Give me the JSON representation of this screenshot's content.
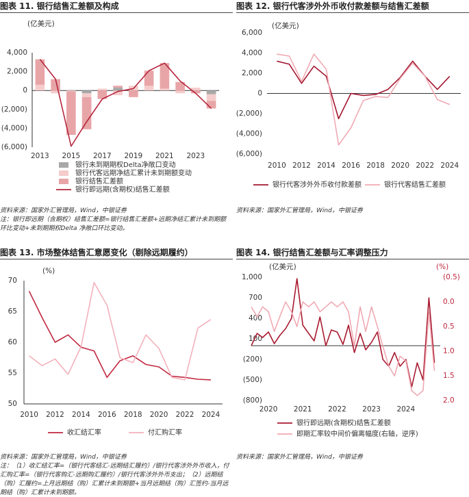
{
  "chart_data": [
    {
      "type": "bar",
      "title": "图表 11.  银行结售汇差额及构成",
      "y_unit": "(亿美元)",
      "categories": [
        2013,
        null,
        2015,
        null,
        2017,
        null,
        2019,
        null,
        2021,
        null,
        2023,
        null
      ],
      "series": [
        {
          "name": "银行未到期期权Delta净敞口变动",
          "color": "#a8a8a8",
          "values": [
            0,
            0,
            0,
            -300,
            0,
            300,
            0,
            0,
            0,
            0,
            0,
            -400
          ]
        },
        {
          "name": "银行代客远期净结汇累计未到期额变动",
          "color": "#f5cccc",
          "values": [
            600,
            -300,
            -100,
            -400,
            200,
            -500,
            500,
            500,
            200,
            -300,
            300,
            -700
          ]
        },
        {
          "name": "银行结售汇差额",
          "color": "#e8a5a8",
          "values": [
            2700,
            1200,
            -4600,
            -3400,
            -900,
            200,
            -700,
            1600,
            2700,
            900,
            -300,
            -800
          ]
        },
        {
          "name": "银行即远期(含期权)结售汇差额",
          "color": "#b5253c",
          "type": "line",
          "values": [
            3300,
            1200,
            -5900,
            -3300,
            -900,
            -100,
            200,
            2100,
            2900,
            1000,
            -300,
            -1900
          ]
        }
      ],
      "ylim": [
        -6000,
        4000
      ],
      "yticks": [
        {
          "value": -6000,
          "label": "(6,000)"
        },
        {
          "value": -4000,
          "label": "(4,000)"
        },
        {
          "value": -2000,
          "label": "(2,000)"
        },
        0,
        {
          "value": 2000,
          "label": "2,000"
        },
        {
          "value": 4000,
          "label": "4,000"
        }
      ],
      "grid": false,
      "source": "资料来源：国家外汇管理局，Wind，中银证券",
      "note": "注：银行即远期（含期权）结售汇差额=银行结售汇差额+远期净结汇累计未到期额环比变动+未到期期权Delta 净敞口环比变动。"
    },
    {
      "type": "line",
      "title": "图表 12.  银行代客涉外外币收付款差额与结售汇差额",
      "y_unit": "(亿美元)",
      "x": [
        2010,
        2011,
        2012,
        2013,
        2014,
        2015,
        2016,
        2017,
        2018,
        2019,
        2020,
        2021,
        2022,
        2023,
        2024
      ],
      "series": [
        {
          "name": "银行代客涉外外币收付款差额",
          "color": "#a3162f",
          "values": [
            3200,
            2900,
            1000,
            2700,
            1700,
            -2500,
            0,
            -200,
            -100,
            400,
            1600,
            3200,
            1700,
            400,
            1700
          ]
        },
        {
          "name": "银行代客结售汇差额",
          "color": "#f0a9b3",
          "values": [
            3900,
            3700,
            1200,
            3900,
            2400,
            -5100,
            -3400,
            -700,
            -300,
            -400,
            1500,
            3000,
            1700,
            -600,
            -1100
          ]
        }
      ],
      "xlim": [
        2009.2,
        2024.9
      ],
      "xticks": [
        2010,
        2012,
        2014,
        2016,
        2018,
        2020,
        2022,
        2024
      ],
      "ylim": [
        -6000,
        6000
      ],
      "yticks": [
        {
          "value": -6000,
          "label": "(6,000)"
        },
        {
          "value": -4000,
          "label": "(4,000)"
        },
        {
          "value": -2000,
          "label": "(2,000)"
        },
        0,
        {
          "value": 2000,
          "label": "2,000"
        },
        {
          "value": 4000,
          "label": "4,000"
        },
        {
          "value": 6000,
          "label": "6,000"
        }
      ],
      "grid": false,
      "source": "资料来源：国家外汇管理局，Wind，中银证券"
    },
    {
      "type": "line",
      "title": "图表 13.  市场整体结售汇意愿变化（剔除远期履约）",
      "y_unit": "(%)",
      "x": [
        2010,
        2011,
        2012,
        2013,
        2014,
        2015,
        2016,
        2017,
        2018,
        2019,
        2020,
        2021,
        2022,
        2023,
        2024
      ],
      "series": [
        {
          "name": "收汇结汇率",
          "color": "#c0273f",
          "values": [
            68.3,
            64,
            60,
            61.2,
            59.2,
            58.6,
            54.3,
            57,
            57.8,
            56.4,
            56,
            54.5,
            54.3,
            54,
            53.9
          ]
        },
        {
          "name": "付汇购汇率",
          "color": "#f3b1bb",
          "values": [
            57.8,
            56.2,
            57.3,
            54.8,
            59.3,
            69.7,
            66,
            57.5,
            56.7,
            61.2,
            59,
            54.3,
            53.9,
            62.3,
            63.7
          ]
        }
      ],
      "xlim": [
        2009.6,
        2024.9
      ],
      "xticks": [
        2010,
        2012,
        2014,
        2016,
        2018,
        2020,
        2022,
        2024
      ],
      "ylim": [
        50,
        70
      ],
      "yticks": [
        50,
        55,
        60,
        65,
        70
      ],
      "grid": false,
      "source": "资料来源：国家外汇管理局，Wind，中银证券",
      "note": "注：（1）收汇结汇率=（银行代客结汇-远期结汇履约）/银行代客涉外外币收入，付汇购汇率=（银行代客购汇-远期购汇履约）/银行代客涉外外币支出；（2）远期结（购）汇履约=上月远期结（购）汇累计未到期额+当月远期结（购）汇签约-当月远期结（购）汇累计未到期额。"
    },
    {
      "type": "line",
      "title": "图表 14.  银行结售汇差额与汇率调整压力",
      "y_unit": "(亿美元)",
      "y2_unit": "(%)",
      "x": [
        2019.5,
        2019.67,
        2019.83,
        2020,
        2020.17,
        2020.33,
        2020.5,
        2020.67,
        2020.83,
        2021,
        2021.17,
        2021.33,
        2021.5,
        2021.67,
        2021.83,
        2022,
        2022.17,
        2022.33,
        2022.5,
        2022.67,
        2022.83,
        2023,
        2023.17,
        2023.33,
        2023.5,
        2023.67,
        2023.83,
        2024,
        2024.17,
        2024.33,
        2024.5,
        2024.67,
        2024.83
      ],
      "series": [
        {
          "name": "银行即远期(含期权)结售汇差额",
          "color": "#a8192f",
          "values": [
            0,
            180,
            120,
            200,
            30,
            150,
            250,
            400,
            980,
            300,
            180,
            70,
            420,
            0,
            230,
            200,
            20,
            300,
            -100,
            180,
            -60,
            50,
            200,
            -200,
            -300,
            -100,
            -300,
            -200,
            -600,
            -250,
            -500,
            700,
            -250
          ]
        },
        {
          "name": "即期汇率较中间价偏离幅度(右轴，逆序)",
          "color": "#f0a9b3",
          "axis": "y2",
          "values": [
            0.1,
            0.3,
            0.1,
            0.2,
            0.6,
            0.3,
            0,
            0.2,
            0.5,
            0,
            0.1,
            0,
            0.2,
            0.1,
            0,
            0.1,
            0,
            0.2,
            0.9,
            0.1,
            0.6,
            0.1,
            0.5,
            0.9,
            1.3,
            1.5,
            1.1,
            1.2,
            1.8,
            1.9,
            1.8,
            0.2,
            1.4
          ]
        }
      ],
      "xlim": [
        2019.5,
        2025
      ],
      "xticks": [
        2020,
        2021,
        2022,
        2023,
        2024
      ],
      "ylim": [
        -800,
        1000
      ],
      "yticks": [
        {
          "value": -800,
          "label": "(800)"
        },
        {
          "value": -500,
          "label": "(500)"
        },
        {
          "value": -200,
          "label": "(200)"
        },
        100,
        400,
        700,
        {
          "value": 1000,
          "label": "1,000"
        }
      ],
      "y2lim": [
        2.0,
        -0.5
      ],
      "y2ticks": [
        {
          "value": -0.5,
          "label": "(0.5)"
        },
        {
          "value": 0,
          "label": "0.0"
        },
        {
          "value": 0.5,
          "label": "0.5"
        },
        {
          "value": 1,
          "label": "1.0"
        },
        {
          "value": 1.5,
          "label": "1.5"
        },
        {
          "value": 2,
          "label": "2.0"
        }
      ],
      "grid": false,
      "source": "资料来源：国家外汇管理局，Wind，中银证券"
    }
  ]
}
